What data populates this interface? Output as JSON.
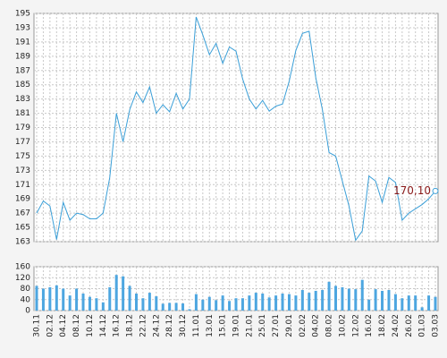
{
  "chart_data": [
    {
      "type": "line",
      "color": "#3a9fd8",
      "values": [
        167,
        168.7,
        168,
        163.3,
        168.5,
        166,
        167,
        166.8,
        166.2,
        166.2,
        167,
        172,
        181,
        177,
        181.5,
        184,
        182.5,
        184.7,
        181,
        182.2,
        181.2,
        183.8,
        181.6,
        183,
        194.5,
        192,
        189.2,
        190.8,
        188,
        190.3,
        189.7,
        185.8,
        183,
        181.6,
        182.8,
        181.3,
        182,
        182.3,
        185.5,
        189.8,
        192.2,
        192.5,
        186,
        181.5,
        175.5,
        175,
        171.5,
        168,
        163.2,
        164.5,
        172.2,
        171.5,
        168.5,
        172,
        171.3,
        166,
        167,
        167.6,
        168.2,
        169,
        170.1
      ],
      "value_labels": [
        null,
        null,
        null,
        null,
        null,
        null,
        null,
        null,
        null,
        null,
        null,
        null,
        null,
        null,
        null,
        null,
        null,
        null,
        null,
        null,
        null,
        null,
        null,
        null,
        null,
        null,
        null,
        null,
        null,
        null,
        null,
        null,
        null,
        null,
        null,
        null,
        null,
        null,
        null,
        null,
        null,
        null,
        null,
        null,
        null,
        null,
        null,
        null,
        null,
        null,
        null,
        null,
        null,
        null,
        null,
        null,
        null,
        null,
        null,
        null,
        "170,10"
      ],
      "ylim": [
        163,
        195
      ],
      "yticks": [
        163,
        165,
        167,
        169,
        171,
        173,
        175,
        177,
        179,
        181,
        183,
        185,
        187,
        189,
        191,
        193,
        195
      ],
      "grid": true
    },
    {
      "type": "bar",
      "color": "#4da6e0",
      "categories": [
        "30.11",
        null,
        "02.12",
        null,
        "04.12",
        null,
        "08.12",
        null,
        "10.12",
        null,
        "14.12",
        null,
        "16.12",
        null,
        "18.12",
        null,
        "22.12",
        null,
        "24.12",
        null,
        "28.12",
        null,
        "30.12",
        null,
        "11.01",
        null,
        "13.01",
        null,
        "15.01",
        null,
        "19.01",
        null,
        "21.01",
        null,
        "25.01",
        null,
        "27.01",
        null,
        "29.01",
        null,
        "02.02",
        null,
        "04.02",
        null,
        "08.02",
        null,
        "10.02",
        null,
        "12.02",
        null,
        "16.02",
        null,
        "18.02",
        null,
        "24.02",
        null,
        "26.02",
        null,
        "01.03",
        null,
        "03.03"
      ],
      "values": [
        90,
        80,
        85,
        92,
        80,
        55,
        80,
        62,
        50,
        45,
        30,
        85,
        130,
        125,
        90,
        62,
        45,
        65,
        52,
        25,
        28,
        28,
        26,
        5,
        60,
        40,
        50,
        38,
        55,
        35,
        45,
        45,
        55,
        65,
        62,
        48,
        55,
        62,
        60,
        55,
        75,
        65,
        72,
        75,
        105,
        90,
        85,
        80,
        78,
        112,
        40,
        78,
        72,
        75,
        60,
        45,
        55,
        55,
        12,
        55,
        50
      ],
      "ylim": [
        0,
        160
      ],
      "yticks": [
        0,
        40,
        80,
        120,
        160
      ],
      "grid": true
    }
  ]
}
